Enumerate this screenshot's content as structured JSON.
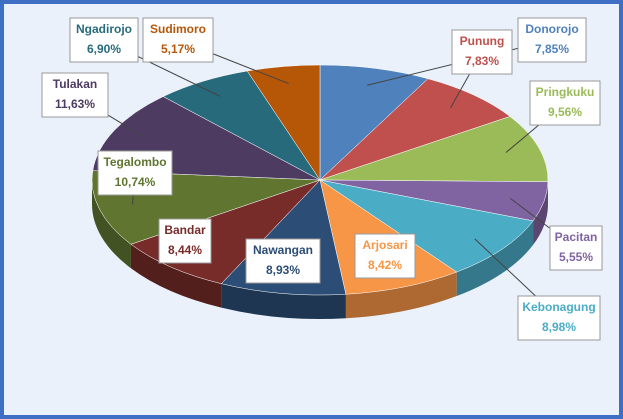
{
  "chart_data": {
    "type": "pie",
    "categories": [
      "Donorojo",
      "Punung",
      "Pringkuku",
      "Pacitan",
      "Kebonagung",
      "Arjosari",
      "Nawangan",
      "Bandar",
      "Tegalombo",
      "Tulakan",
      "Ngadirojo",
      "Sudimoro"
    ],
    "values": [
      7.85,
      7.83,
      9.56,
      5.55,
      8.98,
      8.42,
      8.93,
      8.44,
      10.74,
      11.63,
      6.9,
      5.17
    ],
    "value_labels": [
      "7,85%",
      "7,83%",
      "9,56%",
      "5,55%",
      "8,98%",
      "8,42%",
      "8,93%",
      "8,44%",
      "10,74%",
      "11,63%",
      "6,90%",
      "5,17%"
    ],
    "colors": [
      "#4f81bd",
      "#c0504d",
      "#9bbb59",
      "#8064a2",
      "#4bacc6",
      "#f79646",
      "#2c4d75",
      "#772c2a",
      "#5f7530",
      "#4d3b62",
      "#276a7c",
      "#b65708"
    ]
  }
}
